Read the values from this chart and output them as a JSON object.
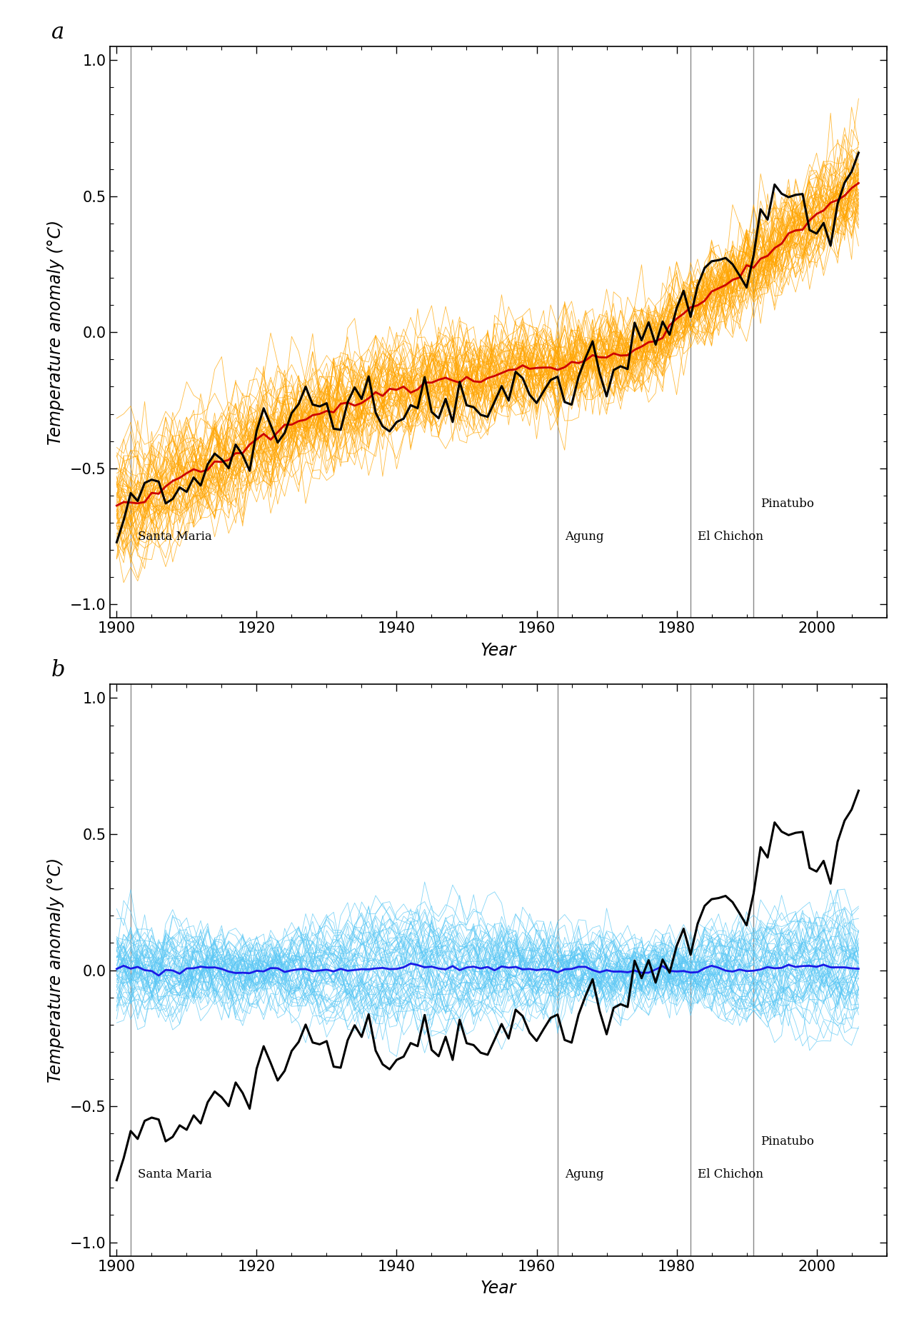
{
  "ylabel": "Temperature anomaly (°C)",
  "xlabel": "Year",
  "ylim": [
    -1.05,
    1.05
  ],
  "xlim": [
    1899,
    2010
  ],
  "yticks": [
    -1.0,
    -0.5,
    0.0,
    0.5,
    1.0
  ],
  "xticks": [
    1900,
    1920,
    1940,
    1960,
    1980,
    2000
  ],
  "volcano_lines": [
    1902,
    1963,
    1982,
    1991
  ],
  "volcano_label_santa_maria": "Santa Maria",
  "volcano_label_agung": "Agung",
  "volcano_label_el_chichon": "El Chichon",
  "volcano_label_pinatubo": "Pinatubo",
  "panel_a_sim_color": "#FFA500",
  "panel_a_mean_color": "#CC0000",
  "panel_b_sim_color": "#5BC8F5",
  "panel_b_mean_color": "#1A1AE6",
  "obs_color": "#000000",
  "obs_linewidth": 2.2,
  "sim_linewidth": 0.6,
  "mean_linewidth": 2.0,
  "n_sim": 58,
  "seed": 42,
  "background_color": "#ffffff",
  "label_fontsize": 17,
  "tick_fontsize": 15,
  "panel_label_fontsize": 22,
  "volcano_label_fontsize": 12
}
